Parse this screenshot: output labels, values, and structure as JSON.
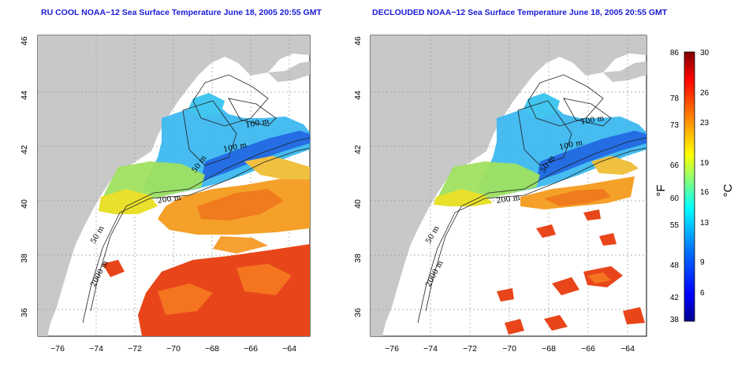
{
  "panels": [
    {
      "title": "RU COOL NOAA−12 Sea Surface Temperature June 18, 2005 20:55 GMT",
      "cloud_masked": false
    },
    {
      "title": "DECLOUDED NOAA−12 Sea Surface Temperature June 18, 2005 20:55 GMT",
      "cloud_masked": true
    }
  ],
  "axes": {
    "lon_ticks": [
      "−76",
      "−74",
      "−72",
      "−70",
      "−68",
      "−66",
      "−64"
    ],
    "lat_ticks": [
      "36",
      "38",
      "40",
      "42",
      "44",
      "46"
    ],
    "lon_range": [
      -77,
      -63
    ],
    "lat_range": [
      35,
      46
    ]
  },
  "contour_labels": [
    "100 m",
    "200 m",
    "50 m",
    "2000 m"
  ],
  "colorbar": {
    "unit_f": "°F",
    "unit_c": "°C",
    "fahrenheit": [
      "86",
      "78",
      "73",
      "66",
      "60",
      "55",
      "48",
      "42",
      "38"
    ],
    "celsius": [
      "30",
      "26",
      "23",
      "19",
      "16",
      "13",
      "9",
      "6"
    ],
    "colors": [
      "#00008f",
      "#0000ff",
      "#0080ff",
      "#00ffff",
      "#80ff80",
      "#ffff00",
      "#ff8000",
      "#ff0000",
      "#800000"
    ]
  },
  "colors": {
    "land": "#c8c8c8",
    "ocean_no_data": "#ffffff",
    "title": "#1a1ad8"
  }
}
